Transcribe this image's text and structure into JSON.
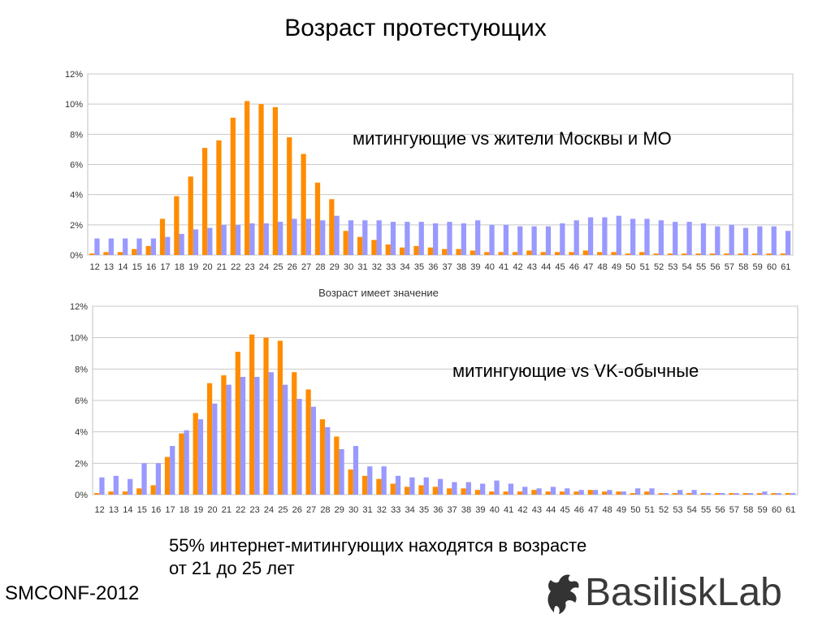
{
  "title": "Возраст протестующих",
  "chart_data": [
    {
      "type": "bar",
      "annotation": "митингующие vs жители Москвы и МО",
      "categories": [
        "12",
        "13",
        "14",
        "15",
        "16",
        "17",
        "18",
        "19",
        "20",
        "21",
        "22",
        "23",
        "24",
        "25",
        "26",
        "27",
        "28",
        "29",
        "30",
        "31",
        "32",
        "33",
        "34",
        "35",
        "36",
        "37",
        "38",
        "39",
        "40",
        "41",
        "42",
        "43",
        "44",
        "45",
        "46",
        "47",
        "48",
        "49",
        "50",
        "51",
        "52",
        "53",
        "54",
        "55",
        "56",
        "57",
        "58",
        "59",
        "60",
        "61"
      ],
      "y_ticks": [
        "0%",
        "2%",
        "4%",
        "6%",
        "8%",
        "10%",
        "12%"
      ],
      "ylim": [
        0,
        12
      ],
      "grid": true,
      "series": [
        {
          "color": "#ff8c00",
          "values": [
            0.1,
            0.2,
            0.2,
            0.4,
            0.6,
            2.4,
            3.9,
            5.2,
            7.1,
            7.6,
            9.1,
            10.2,
            10.0,
            9.8,
            7.8,
            6.7,
            4.8,
            3.7,
            1.6,
            1.2,
            1.0,
            0.7,
            0.5,
            0.6,
            0.5,
            0.4,
            0.4,
            0.3,
            0.2,
            0.2,
            0.2,
            0.3,
            0.2,
            0.2,
            0.2,
            0.3,
            0.2,
            0.2,
            0.1,
            0.2,
            0.1,
            0.1,
            0.1,
            0.1,
            0.1,
            0.1,
            0.1,
            0.1,
            0.1,
            0.1
          ]
        },
        {
          "color": "#9999ff",
          "values": [
            1.1,
            1.1,
            1.1,
            1.1,
            1.1,
            1.2,
            1.4,
            1.7,
            1.8,
            2.0,
            2.0,
            2.1,
            2.1,
            2.2,
            2.4,
            2.4,
            2.3,
            2.6,
            2.3,
            2.3,
            2.3,
            2.2,
            2.2,
            2.2,
            2.1,
            2.2,
            2.1,
            2.3,
            2.0,
            2.0,
            1.9,
            1.9,
            1.9,
            2.1,
            2.3,
            2.5,
            2.5,
            2.6,
            2.4,
            2.4,
            2.3,
            2.2,
            2.2,
            2.1,
            1.9,
            2.0,
            1.8,
            1.9,
            1.9,
            1.6
          ]
        }
      ]
    },
    {
      "type": "bar",
      "title": "Возраст имеет значение",
      "annotation": "митингующие vs VK-обычные",
      "categories": [
        "12",
        "13",
        "14",
        "15",
        "16",
        "17",
        "18",
        "19",
        "20",
        "21",
        "22",
        "23",
        "24",
        "25",
        "26",
        "27",
        "28",
        "29",
        "30",
        "31",
        "32",
        "33",
        "34",
        "35",
        "36",
        "37",
        "38",
        "39",
        "40",
        "41",
        "42",
        "43",
        "44",
        "45",
        "46",
        "47",
        "48",
        "49",
        "50",
        "51",
        "52",
        "53",
        "54",
        "55",
        "56",
        "57",
        "58",
        "59",
        "60",
        "61"
      ],
      "y_ticks": [
        "0%",
        "2%",
        "4%",
        "6%",
        "8%",
        "10%",
        "12%"
      ],
      "ylim": [
        0,
        12
      ],
      "grid": true,
      "series": [
        {
          "color": "#ff8c00",
          "values": [
            0.1,
            0.2,
            0.2,
            0.4,
            0.6,
            2.4,
            3.9,
            5.2,
            7.1,
            7.6,
            9.1,
            10.2,
            10.0,
            9.8,
            7.8,
            6.7,
            4.8,
            3.7,
            1.6,
            1.2,
            1.0,
            0.7,
            0.5,
            0.6,
            0.5,
            0.4,
            0.4,
            0.3,
            0.2,
            0.2,
            0.2,
            0.3,
            0.2,
            0.2,
            0.2,
            0.3,
            0.2,
            0.2,
            0.1,
            0.2,
            0.1,
            0.1,
            0.1,
            0.1,
            0.1,
            0.1,
            0.1,
            0.1,
            0.1,
            0.1
          ]
        },
        {
          "color": "#9999ff",
          "values": [
            1.1,
            1.2,
            1.0,
            2.0,
            2.0,
            3.1,
            4.1,
            4.8,
            5.8,
            7.0,
            7.5,
            7.5,
            7.8,
            7.0,
            6.1,
            5.6,
            4.3,
            2.9,
            3.1,
            1.8,
            1.8,
            1.2,
            1.1,
            1.1,
            1.0,
            0.8,
            0.8,
            0.7,
            0.9,
            0.7,
            0.5,
            0.4,
            0.5,
            0.4,
            0.3,
            0.3,
            0.3,
            0.2,
            0.4,
            0.4,
            0.1,
            0.3,
            0.3,
            0.1,
            0.1,
            0.1,
            0.1,
            0.2,
            0.1,
            0.1
          ]
        }
      ]
    }
  ],
  "footer": {
    "line1": "55% интернет-митингующих находятся в возрасте",
    "line2": "от 21 до 25 лет"
  },
  "conference": "SMCONF-2012",
  "logo": {
    "text": "BasiliskLab",
    "icon": "basilisk-dragon-icon"
  }
}
